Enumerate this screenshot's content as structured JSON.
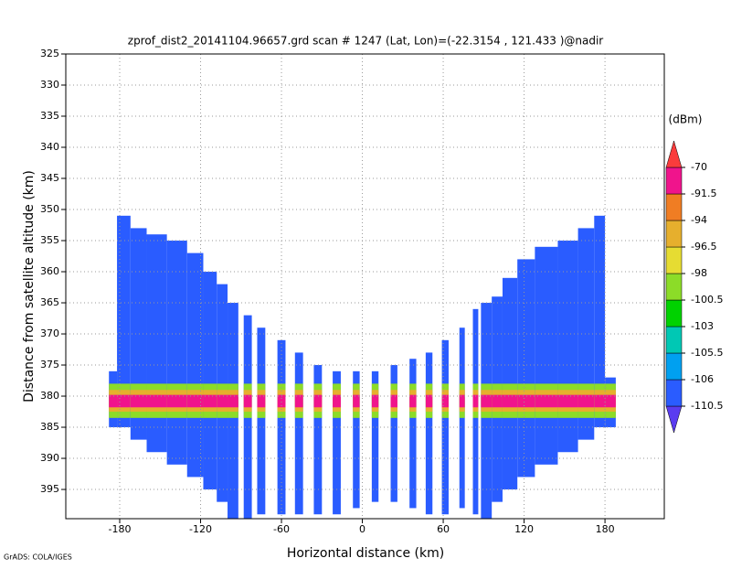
{
  "chart_data": {
    "type": "heatmap",
    "title": "zprof_dist2_20141104.96657.grd  scan # 1247  (Lat, Lon)=(-22.3154 , 121.433 )@nadir",
    "x_label": "Horizontal distance (km)",
    "y_label": "Distance from satellite altitude (km)",
    "footer": "GrADS: COLA/IGES",
    "colorbar_label": "(dBm)",
    "xlim": [
      -220,
      224
    ],
    "ylim": [
      399.7,
      325
    ],
    "y_inverted": true,
    "xticks": [
      -180,
      -120,
      -60,
      0,
      60,
      120,
      180
    ],
    "yticks": [
      325,
      330,
      335,
      340,
      345,
      350,
      355,
      360,
      365,
      370,
      375,
      380,
      385,
      390,
      395
    ],
    "grid": true,
    "levels": [
      -110.5,
      -106,
      -105.5,
      -103,
      -100.5,
      -98,
      -96.5,
      -94,
      -91.5,
      -70
    ],
    "colors": [
      "#5a3cf0",
      "#2a5cff",
      "#00a0f0",
      "#00c8b4",
      "#00d200",
      "#8cdc28",
      "#e6dc32",
      "#e6af2d",
      "#f07d23",
      "#f0148c",
      "#fa3c3c"
    ],
    "columns": [
      {
        "x0": -188,
        "x1": -182,
        "top": 376,
        "bottom": 385,
        "value": -108
      },
      {
        "x0": -182,
        "x1": -172,
        "top": 351,
        "bottom": 385,
        "value": -108
      },
      {
        "x0": -172,
        "x1": -160,
        "top": 353,
        "bottom": 387,
        "value": -108
      },
      {
        "x0": -160,
        "x1": -145,
        "top": 354,
        "bottom": 389,
        "value": -108
      },
      {
        "x0": -145,
        "x1": -130,
        "top": 355,
        "bottom": 391,
        "value": -108
      },
      {
        "x0": -130,
        "x1": -118,
        "top": 357,
        "bottom": 393,
        "value": -108
      },
      {
        "x0": -118,
        "x1": -108,
        "top": 360,
        "bottom": 395,
        "value": -108
      },
      {
        "x0": -108,
        "x1": -100,
        "top": 362,
        "bottom": 397,
        "value": -108
      },
      {
        "x0": -100,
        "x1": -92,
        "top": 365,
        "bottom": 399.7,
        "value": -108
      },
      {
        "x0": -88,
        "x1": -82,
        "top": 367,
        "bottom": 399.7,
        "value": -108
      },
      {
        "x0": -78,
        "x1": -72,
        "top": 369,
        "bottom": 399,
        "value": -108
      },
      {
        "x0": -63,
        "x1": -57,
        "top": 371,
        "bottom": 399,
        "value": -108
      },
      {
        "x0": -50,
        "x1": -44,
        "top": 373,
        "bottom": 399,
        "value": -108
      },
      {
        "x0": -36,
        "x1": -30,
        "top": 375,
        "bottom": 399,
        "value": -108
      },
      {
        "x0": -22,
        "x1": -16,
        "top": 376,
        "bottom": 399,
        "value": -108
      },
      {
        "x0": -7,
        "x1": -2,
        "top": 376,
        "bottom": 398,
        "value": -108
      },
      {
        "x0": 7,
        "x1": 12,
        "top": 376,
        "bottom": 397,
        "value": -108
      },
      {
        "x0": 21,
        "x1": 26,
        "top": 375,
        "bottom": 397,
        "value": -108
      },
      {
        "x0": 35,
        "x1": 40,
        "top": 374,
        "bottom": 398,
        "value": -108
      },
      {
        "x0": 47,
        "x1": 52,
        "top": 373,
        "bottom": 399,
        "value": -108
      },
      {
        "x0": 59,
        "x1": 64,
        "top": 371,
        "bottom": 399,
        "value": -108
      },
      {
        "x0": 72,
        "x1": 76,
        "top": 369,
        "bottom": 398,
        "value": -108
      },
      {
        "x0": 82,
        "x1": 86,
        "top": 366,
        "bottom": 399,
        "value": -108
      },
      {
        "x0": 88,
        "x1": 96,
        "top": 365,
        "bottom": 399.7,
        "value": -108
      },
      {
        "x0": 96,
        "x1": 104,
        "top": 364,
        "bottom": 397,
        "value": -108
      },
      {
        "x0": 104,
        "x1": 115,
        "top": 361,
        "bottom": 395,
        "value": -108
      },
      {
        "x0": 115,
        "x1": 128,
        "top": 358,
        "bottom": 393,
        "value": -108
      },
      {
        "x0": 128,
        "x1": 145,
        "top": 356,
        "bottom": 391,
        "value": -108
      },
      {
        "x0": 145,
        "x1": 160,
        "top": 355,
        "bottom": 389,
        "value": -108
      },
      {
        "x0": 160,
        "x1": 172,
        "top": 353,
        "bottom": 387,
        "value": -108
      },
      {
        "x0": 172,
        "x1": 180,
        "top": 351,
        "bottom": 385,
        "value": -108
      },
      {
        "x0": 180,
        "x1": 188,
        "top": 377,
        "bottom": 385,
        "value": -108
      }
    ],
    "bands": [
      {
        "top": 378,
        "bottom": 383.5,
        "value": -100
      },
      {
        "top": 379,
        "bottom": 382.5,
        "value": -95
      },
      {
        "top": 379.8,
        "bottom": 381.8,
        "value": -85
      }
    ]
  }
}
